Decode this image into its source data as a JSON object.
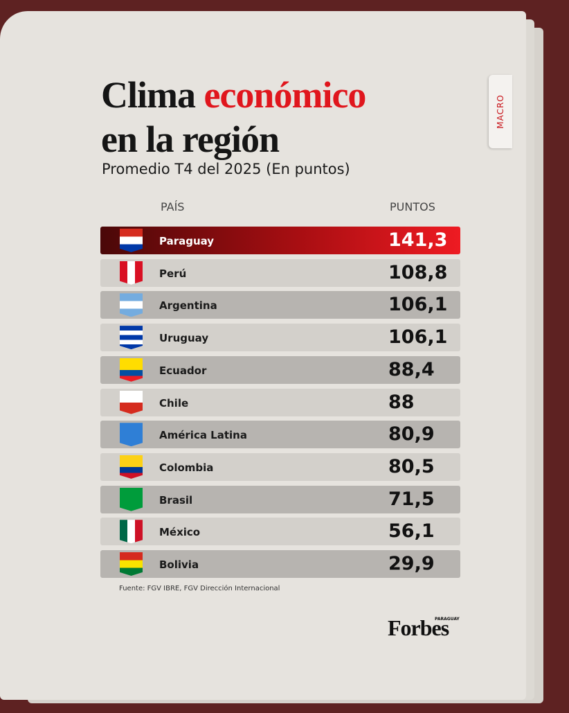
{
  "header": {
    "title_start": "Clima",
    "title_highlight": "económico",
    "title_line2": "en la región",
    "subtitle": "Promedio T4 del 2025 (En puntos)",
    "tab": "MACRO"
  },
  "table": {
    "columns": [
      "PAÍS",
      "PUNTOS"
    ],
    "rows": [
      [
        "Paraguay",
        "141,3"
      ],
      [
        "Perú",
        "108,8"
      ],
      [
        "Argentina",
        "106,1"
      ],
      [
        "Uruguay",
        "106,1"
      ],
      [
        "Ecuador",
        "88,4"
      ],
      [
        "Chile",
        "88"
      ],
      [
        "América Latina",
        "80,9"
      ],
      [
        "Colombia",
        "80,5"
      ],
      [
        "Brasil",
        "71,5"
      ],
      [
        "México",
        "56,1"
      ],
      [
        "Bolivia",
        "29,9"
      ]
    ]
  },
  "footer": {
    "source": "Fuente: FGV IBRE, FGV Dirección Internacional",
    "brand": "Forbes",
    "brand_sub": "PARAGUAY"
  }
}
